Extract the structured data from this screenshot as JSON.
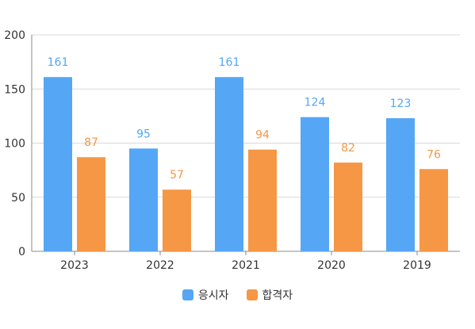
{
  "chart_data": {
    "type": "bar",
    "categories": [
      "2023",
      "2022",
      "2021",
      "2020",
      "2019"
    ],
    "series": [
      {
        "name": "응시자",
        "values": [
          161,
          95,
          161,
          124,
          123
        ],
        "color": "#55a6f5"
      },
      {
        "name": "합격자",
        "values": [
          87,
          57,
          94,
          82,
          76
        ],
        "color": "#f59745"
      }
    ],
    "ylim": [
      0,
      200
    ],
    "yticks": [
      0,
      50,
      100,
      150,
      200
    ],
    "grid": true,
    "legend_position": "bottom-center",
    "title": "",
    "xlabel": "",
    "ylabel": ""
  }
}
